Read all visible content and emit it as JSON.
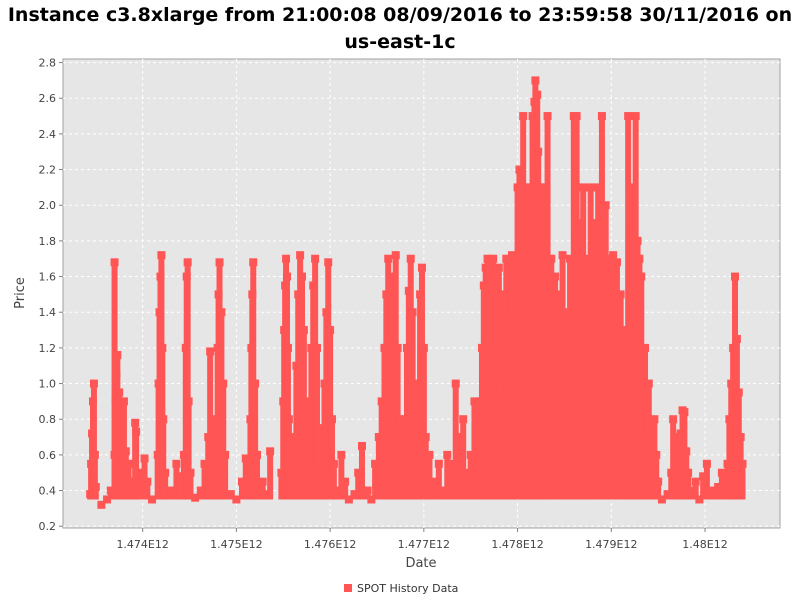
{
  "chart_data": {
    "type": "scatter",
    "title": "Instance c3.8xlarge from 21:00:08 08/09/2016 to 23:59:58 30/11/2016 on us-east-1c",
    "xlabel": "Date",
    "ylabel": "Price",
    "xlim": [
      1473150000000.0,
      1480800000000.0
    ],
    "ylim": [
      0.19,
      2.82
    ],
    "x_ticks": [
      1474000000000.0,
      1475000000000.0,
      1476000000000.0,
      1477000000000.0,
      1478000000000.0,
      1479000000000.0,
      1480000000000.0
    ],
    "x_tick_labels": [
      "1.474E12",
      "1.475E12",
      "1.476E12",
      "1.477E12",
      "1.478E12",
      "1.479E12",
      "1.48E12"
    ],
    "y_ticks": [
      0.2,
      0.4,
      0.6,
      0.8,
      1.0,
      1.2,
      1.4,
      1.6,
      1.8,
      2.0,
      2.2,
      2.4,
      2.6,
      2.8
    ],
    "y_tick_labels": [
      "0.2",
      "0.4",
      "0.6",
      "0.8",
      "1.0",
      "1.2",
      "1.4",
      "1.6",
      "1.8",
      "2.0",
      "2.2",
      "2.4",
      "2.6",
      "2.8"
    ],
    "grid": true,
    "legend_position": "bottom-center",
    "series": [
      {
        "name": "SPOT History Data",
        "color": "#ff5555",
        "points": [
          [
            1473440000000.0,
            0.38
          ],
          [
            1473450000000.0,
            0.55
          ],
          [
            1473460000000.0,
            0.72
          ],
          [
            1473470000000.0,
            0.9
          ],
          [
            1473480000000.0,
            1.0
          ],
          [
            1473490000000.0,
            0.6
          ],
          [
            1473500000000.0,
            0.42
          ],
          [
            1473560000000.0,
            0.32
          ],
          [
            1473620000000.0,
            0.35
          ],
          [
            1473660000000.0,
            0.4
          ],
          [
            1473700000000.0,
            0.6
          ],
          [
            1473710000000.0,
            0.9
          ],
          [
            1473720000000.0,
            1.05
          ],
          [
            1473730000000.0,
            1.16
          ],
          [
            1473740000000.0,
            0.8
          ],
          [
            1473750000000.0,
            0.95
          ],
          [
            1473760000000.0,
            0.75
          ],
          [
            1473780000000.0,
            0.58
          ],
          [
            1473800000000.0,
            0.9
          ],
          [
            1473820000000.0,
            0.62
          ],
          [
            1473850000000.0,
            0.55
          ],
          [
            1473880000000.0,
            0.45
          ],
          [
            1473920000000.0,
            0.78
          ],
          [
            1473930000000.0,
            0.73
          ],
          [
            1473960000000.0,
            0.5
          ],
          [
            1473700000000.0,
            1.68
          ],
          [
            1474020000000.0,
            0.58
          ],
          [
            1474050000000.0,
            0.45
          ],
          [
            1474100000000.0,
            0.35
          ],
          [
            1474160000000.0,
            0.6
          ],
          [
            1474170000000.0,
            1.0
          ],
          [
            1474180000000.0,
            1.4
          ],
          [
            1474190000000.0,
            1.6
          ],
          [
            1474200000000.0,
            1.72
          ],
          [
            1474210000000.0,
            1.2
          ],
          [
            1474220000000.0,
            0.8
          ],
          [
            1474240000000.0,
            0.5
          ],
          [
            1474300000000.0,
            0.4
          ],
          [
            1474360000000.0,
            0.55
          ],
          [
            1474400000000.0,
            0.48
          ],
          [
            1474440000000.0,
            0.6
          ],
          [
            1474460000000.0,
            1.2
          ],
          [
            1474470000000.0,
            1.6
          ],
          [
            1474480000000.0,
            1.68
          ],
          [
            1474490000000.0,
            0.9
          ],
          [
            1474510000000.0,
            0.5
          ],
          [
            1474560000000.0,
            0.36
          ],
          [
            1474620000000.0,
            0.4
          ],
          [
            1474660000000.0,
            0.55
          ],
          [
            1474700000000.0,
            0.7
          ],
          [
            1474720000000.0,
            1.18
          ],
          [
            1474740000000.0,
            0.62
          ],
          [
            1474780000000.0,
            0.8
          ],
          [
            1474800000000.0,
            1.2
          ],
          [
            1474810000000.0,
            1.5
          ],
          [
            1474820000000.0,
            1.68
          ],
          [
            1474840000000.0,
            1.4
          ],
          [
            1474860000000.0,
            1.0
          ],
          [
            1474880000000.0,
            0.6
          ],
          [
            1474940000000.0,
            0.38
          ],
          [
            1475000000000.0,
            0.35
          ],
          [
            1475060000000.0,
            0.45
          ],
          [
            1475100000000.0,
            0.58
          ],
          [
            1475150000000.0,
            0.8
          ],
          [
            1475160000000.0,
            1.2
          ],
          [
            1475170000000.0,
            1.5
          ],
          [
            1475180000000.0,
            1.68
          ],
          [
            1475200000000.0,
            1.0
          ],
          [
            1475220000000.0,
            0.6
          ],
          [
            1475280000000.0,
            0.45
          ],
          [
            1475320000000.0,
            0.38
          ],
          [
            1475360000000.0,
            0.62
          ],
          [
            1475480000000.0,
            0.5
          ],
          [
            1475500000000.0,
            0.9
          ],
          [
            1475510000000.0,
            1.3
          ],
          [
            1475520000000.0,
            1.55
          ],
          [
            1475530000000.0,
            1.7
          ],
          [
            1475540000000.0,
            1.6
          ],
          [
            1475550000000.0,
            1.2
          ],
          [
            1475560000000.0,
            0.8
          ],
          [
            1475580000000.0,
            0.5
          ],
          [
            1475620000000.0,
            0.7
          ],
          [
            1475640000000.0,
            1.1
          ],
          [
            1475660000000.0,
            1.5
          ],
          [
            1475680000000.0,
            1.72
          ],
          [
            1475700000000.0,
            1.6
          ],
          [
            1475720000000.0,
            1.3
          ],
          [
            1475740000000.0,
            0.9
          ],
          [
            1475760000000.0,
            0.6
          ],
          [
            1475800000000.0,
            1.2
          ],
          [
            1475820000000.0,
            1.55
          ],
          [
            1475840000000.0,
            1.7
          ],
          [
            1475860000000.0,
            1.2
          ],
          [
            1475880000000.0,
            0.75
          ],
          [
            1475900000000.0,
            0.5
          ],
          [
            1475940000000.0,
            1.0
          ],
          [
            1475960000000.0,
            1.4
          ],
          [
            1475980000000.0,
            1.68
          ],
          [
            1476000000000.0,
            1.3
          ],
          [
            1476020000000.0,
            0.8
          ],
          [
            1476040000000.0,
            0.55
          ],
          [
            1476080000000.0,
            0.4
          ],
          [
            1476120000000.0,
            0.6
          ],
          [
            1476160000000.0,
            0.45
          ],
          [
            1476200000000.0,
            0.35
          ],
          [
            1476260000000.0,
            0.38
          ],
          [
            1476300000000.0,
            0.5
          ],
          [
            1476340000000.0,
            0.65
          ],
          [
            1476400000000.0,
            0.4
          ],
          [
            1476440000000.0,
            0.35
          ],
          [
            1476480000000.0,
            0.55
          ],
          [
            1476520000000.0,
            0.7
          ],
          [
            1476550000000.0,
            0.9
          ],
          [
            1476580000000.0,
            1.2
          ],
          [
            1476600000000.0,
            1.5
          ],
          [
            1476620000000.0,
            1.7
          ],
          [
            1476640000000.0,
            1.3
          ],
          [
            1476660000000.0,
            1.0
          ],
          [
            1476680000000.0,
            1.6
          ],
          [
            1476700000000.0,
            1.72
          ],
          [
            1476720000000.0,
            1.2
          ],
          [
            1476740000000.0,
            0.8
          ],
          [
            1476760000000.0,
            0.5
          ],
          [
            1476800000000.0,
            0.8
          ],
          [
            1476820000000.0,
            1.2
          ],
          [
            1476840000000.0,
            1.52
          ],
          [
            1476860000000.0,
            1.7
          ],
          [
            1476880000000.0,
            1.4
          ],
          [
            1476900000000.0,
            1.0
          ],
          [
            1476920000000.0,
            0.7
          ],
          [
            1476940000000.0,
            0.9
          ],
          [
            1476960000000.0,
            1.5
          ],
          [
            1476980000000.0,
            1.65
          ],
          [
            1477000000000.0,
            1.2
          ],
          [
            1477020000000.0,
            0.7
          ],
          [
            1477060000000.0,
            0.6
          ],
          [
            1477100000000.0,
            0.45
          ],
          [
            1477160000000.0,
            0.55
          ],
          [
            1477200000000.0,
            0.4
          ],
          [
            1477250000000.0,
            0.6
          ],
          [
            1477300000000.0,
            0.55
          ],
          [
            1477340000000.0,
            1.0
          ],
          [
            1477380000000.0,
            0.7
          ],
          [
            1477420000000.0,
            0.8
          ],
          [
            1477460000000.0,
            0.5
          ],
          [
            1477500000000.0,
            0.6
          ],
          [
            1477540000000.0,
            0.9
          ],
          [
            1477600000000.0,
            0.9
          ],
          [
            1477620000000.0,
            1.2
          ],
          [
            1477640000000.0,
            1.55
          ],
          [
            1477660000000.0,
            1.65
          ],
          [
            1477680000000.0,
            1.7
          ],
          [
            1477700000000.0,
            1.6
          ],
          [
            1477720000000.0,
            1.4
          ],
          [
            1477740000000.0,
            1.7
          ],
          [
            1477760000000.0,
            1.5
          ],
          [
            1477780000000.0,
            1.2
          ],
          [
            1477800000000.0,
            1.65
          ],
          [
            1477820000000.0,
            1.0
          ],
          [
            1477840000000.0,
            1.5
          ],
          [
            1477880000000.0,
            1.7
          ],
          [
            1477900000000.0,
            1.6
          ],
          [
            1477920000000.0,
            1.5
          ],
          [
            1477940000000.0,
            1.72
          ],
          [
            1477960000000.0,
            1.4
          ],
          [
            1477980000000.0,
            1.7
          ],
          [
            1478000000000.0,
            2.1
          ],
          [
            1478020000000.0,
            2.2
          ],
          [
            1478040000000.0,
            1.9
          ],
          [
            1478060000000.0,
            2.5
          ],
          [
            1478080000000.0,
            2.1
          ],
          [
            1478100000000.0,
            1.7
          ],
          [
            1478120000000.0,
            2.0
          ],
          [
            1478140000000.0,
            2.1
          ],
          [
            1478160000000.0,
            2.5
          ],
          [
            1478180000000.0,
            2.58
          ],
          [
            1478190000000.0,
            2.7
          ],
          [
            1478210000000.0,
            2.62
          ],
          [
            1478220000000.0,
            2.3
          ],
          [
            1478240000000.0,
            2.1
          ],
          [
            1478260000000.0,
            2.0
          ],
          [
            1478280000000.0,
            1.9
          ],
          [
            1478300000000.0,
            2.1
          ],
          [
            1478320000000.0,
            2.5
          ],
          [
            1478360000000.0,
            1.7
          ],
          [
            1478400000000.0,
            1.6
          ],
          [
            1478440000000.0,
            1.5
          ],
          [
            1478480000000.0,
            1.72
          ],
          [
            1478520000000.0,
            1.4
          ],
          [
            1478560000000.0,
            1.7
          ],
          [
            1478600000000.0,
            2.5
          ],
          [
            1478630000000.0,
            2.5
          ],
          [
            1478660000000.0,
            1.9
          ],
          [
            1478700000000.0,
            2.1
          ],
          [
            1478740000000.0,
            1.7
          ],
          [
            1478780000000.0,
            2.1
          ],
          [
            1478820000000.0,
            1.9
          ],
          [
            1478860000000.0,
            2.1
          ],
          [
            1478900000000.0,
            2.5
          ],
          [
            1478940000000.0,
            2.0
          ],
          [
            1478980000000.0,
            1.7
          ],
          [
            1479020000000.0,
            1.72
          ],
          [
            1479060000000.0,
            1.68
          ],
          [
            1479100000000.0,
            1.5
          ],
          [
            1479140000000.0,
            1.3
          ],
          [
            1479180000000.0,
            2.5
          ],
          [
            1479200000000.0,
            2.1
          ],
          [
            1479220000000.0,
            1.9
          ],
          [
            1479240000000.0,
            2.0
          ],
          [
            1479260000000.0,
            2.5
          ],
          [
            1479280000000.0,
            1.8
          ],
          [
            1479300000000.0,
            1.7
          ],
          [
            1479320000000.0,
            1.6
          ],
          [
            1479360000000.0,
            1.2
          ],
          [
            1479380000000.0,
            0.9
          ],
          [
            1479400000000.0,
            1.0
          ],
          [
            1479420000000.0,
            0.7
          ],
          [
            1479440000000.0,
            0.5
          ],
          [
            1479460000000.0,
            0.8
          ],
          [
            1479480000000.0,
            0.6
          ],
          [
            1479500000000.0,
            0.45
          ],
          [
            1479540000000.0,
            0.35
          ],
          [
            1479600000000.0,
            0.38
          ],
          [
            1479640000000.0,
            0.5
          ],
          [
            1479660000000.0,
            0.8
          ],
          [
            1479680000000.0,
            0.7
          ],
          [
            1479700000000.0,
            0.55
          ],
          [
            1479720000000.0,
            0.68
          ],
          [
            1479740000000.0,
            0.72
          ],
          [
            1479760000000.0,
            0.85
          ],
          [
            1479780000000.0,
            0.84
          ],
          [
            1479800000000.0,
            0.62
          ],
          [
            1479820000000.0,
            0.5
          ],
          [
            1479860000000.0,
            0.4
          ],
          [
            1479900000000.0,
            0.45
          ],
          [
            1479940000000.0,
            0.35
          ],
          [
            1479980000000.0,
            0.48
          ],
          [
            1480020000000.0,
            0.55
          ],
          [
            1480060000000.0,
            0.4
          ],
          [
            1480100000000.0,
            0.38
          ],
          [
            1480140000000.0,
            0.42
          ],
          [
            1480180000000.0,
            0.5
          ],
          [
            1480240000000.0,
            0.55
          ],
          [
            1480260000000.0,
            0.8
          ],
          [
            1480280000000.0,
            1.0
          ],
          [
            1480300000000.0,
            1.2
          ],
          [
            1480320000000.0,
            1.6
          ],
          [
            1480340000000.0,
            1.25
          ],
          [
            1480360000000.0,
            0.95
          ],
          [
            1480380000000.0,
            0.7
          ],
          [
            1480400000000.0,
            0.55
          ]
        ]
      }
    ]
  }
}
